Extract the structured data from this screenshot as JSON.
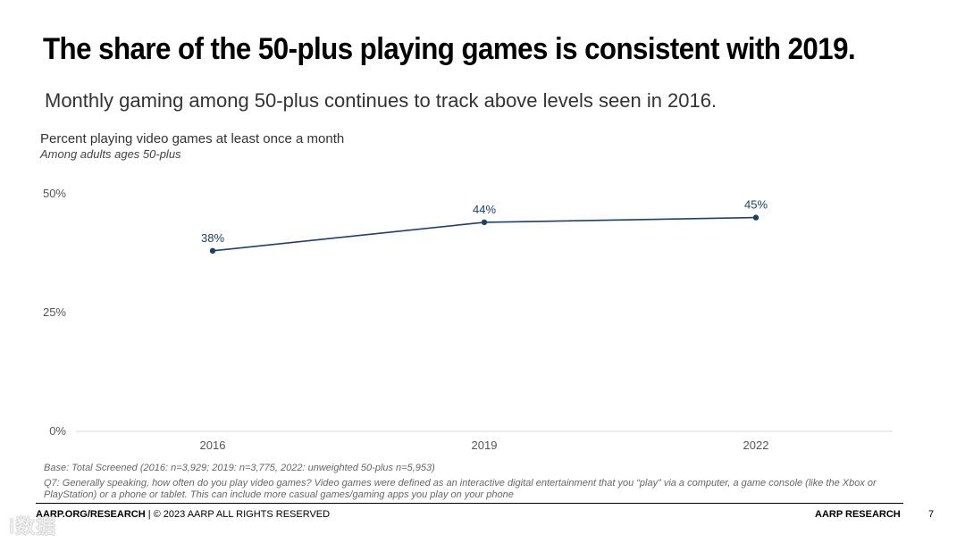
{
  "header": {
    "title": "The share of the 50-plus playing games is consistent with 2019.",
    "subtitle": "Monthly gaming among 50-plus continues to track above levels seen in 2016."
  },
  "chart_data": {
    "type": "line",
    "title": "Percent playing video games at least once a month",
    "subtitle": "Among adults ages 50-plus",
    "categories": [
      "2016",
      "2019",
      "2022"
    ],
    "series": [
      {
        "name": "Percent playing video games at least once a month",
        "values": [
          38,
          44,
          45
        ]
      }
    ],
    "data_labels": [
      "38%",
      "44%",
      "45%"
    ],
    "yticks": [
      0,
      25,
      50
    ],
    "ytick_labels": [
      "0%",
      "25%",
      "50%"
    ],
    "ylim": [
      0,
      50
    ],
    "xlabel": "",
    "ylabel": "",
    "grid": false,
    "line_color": "#1f3f66"
  },
  "notes": {
    "base": "Base: Total Screened (2016: n=3,929; 2019: n=3,775, 2022: unweighted 50-plus n=5,953)",
    "q7": "Q7: Generally speaking, how often do you play video games? Video games were defined as an interactive digital entertainment that you “play” via a computer, a game console (like the Xbox or PlayStation) or a phone or tablet. This can include more casual games/gaming apps you play on your phone"
  },
  "footer": {
    "url": "AARP.ORG/RESEARCH",
    "rights": " | © 2023 AARP ALL RIGHTS RESERVED",
    "brand": "AARP RESEARCH",
    "page": "7"
  },
  "watermark": {
    "text": "i数据"
  }
}
